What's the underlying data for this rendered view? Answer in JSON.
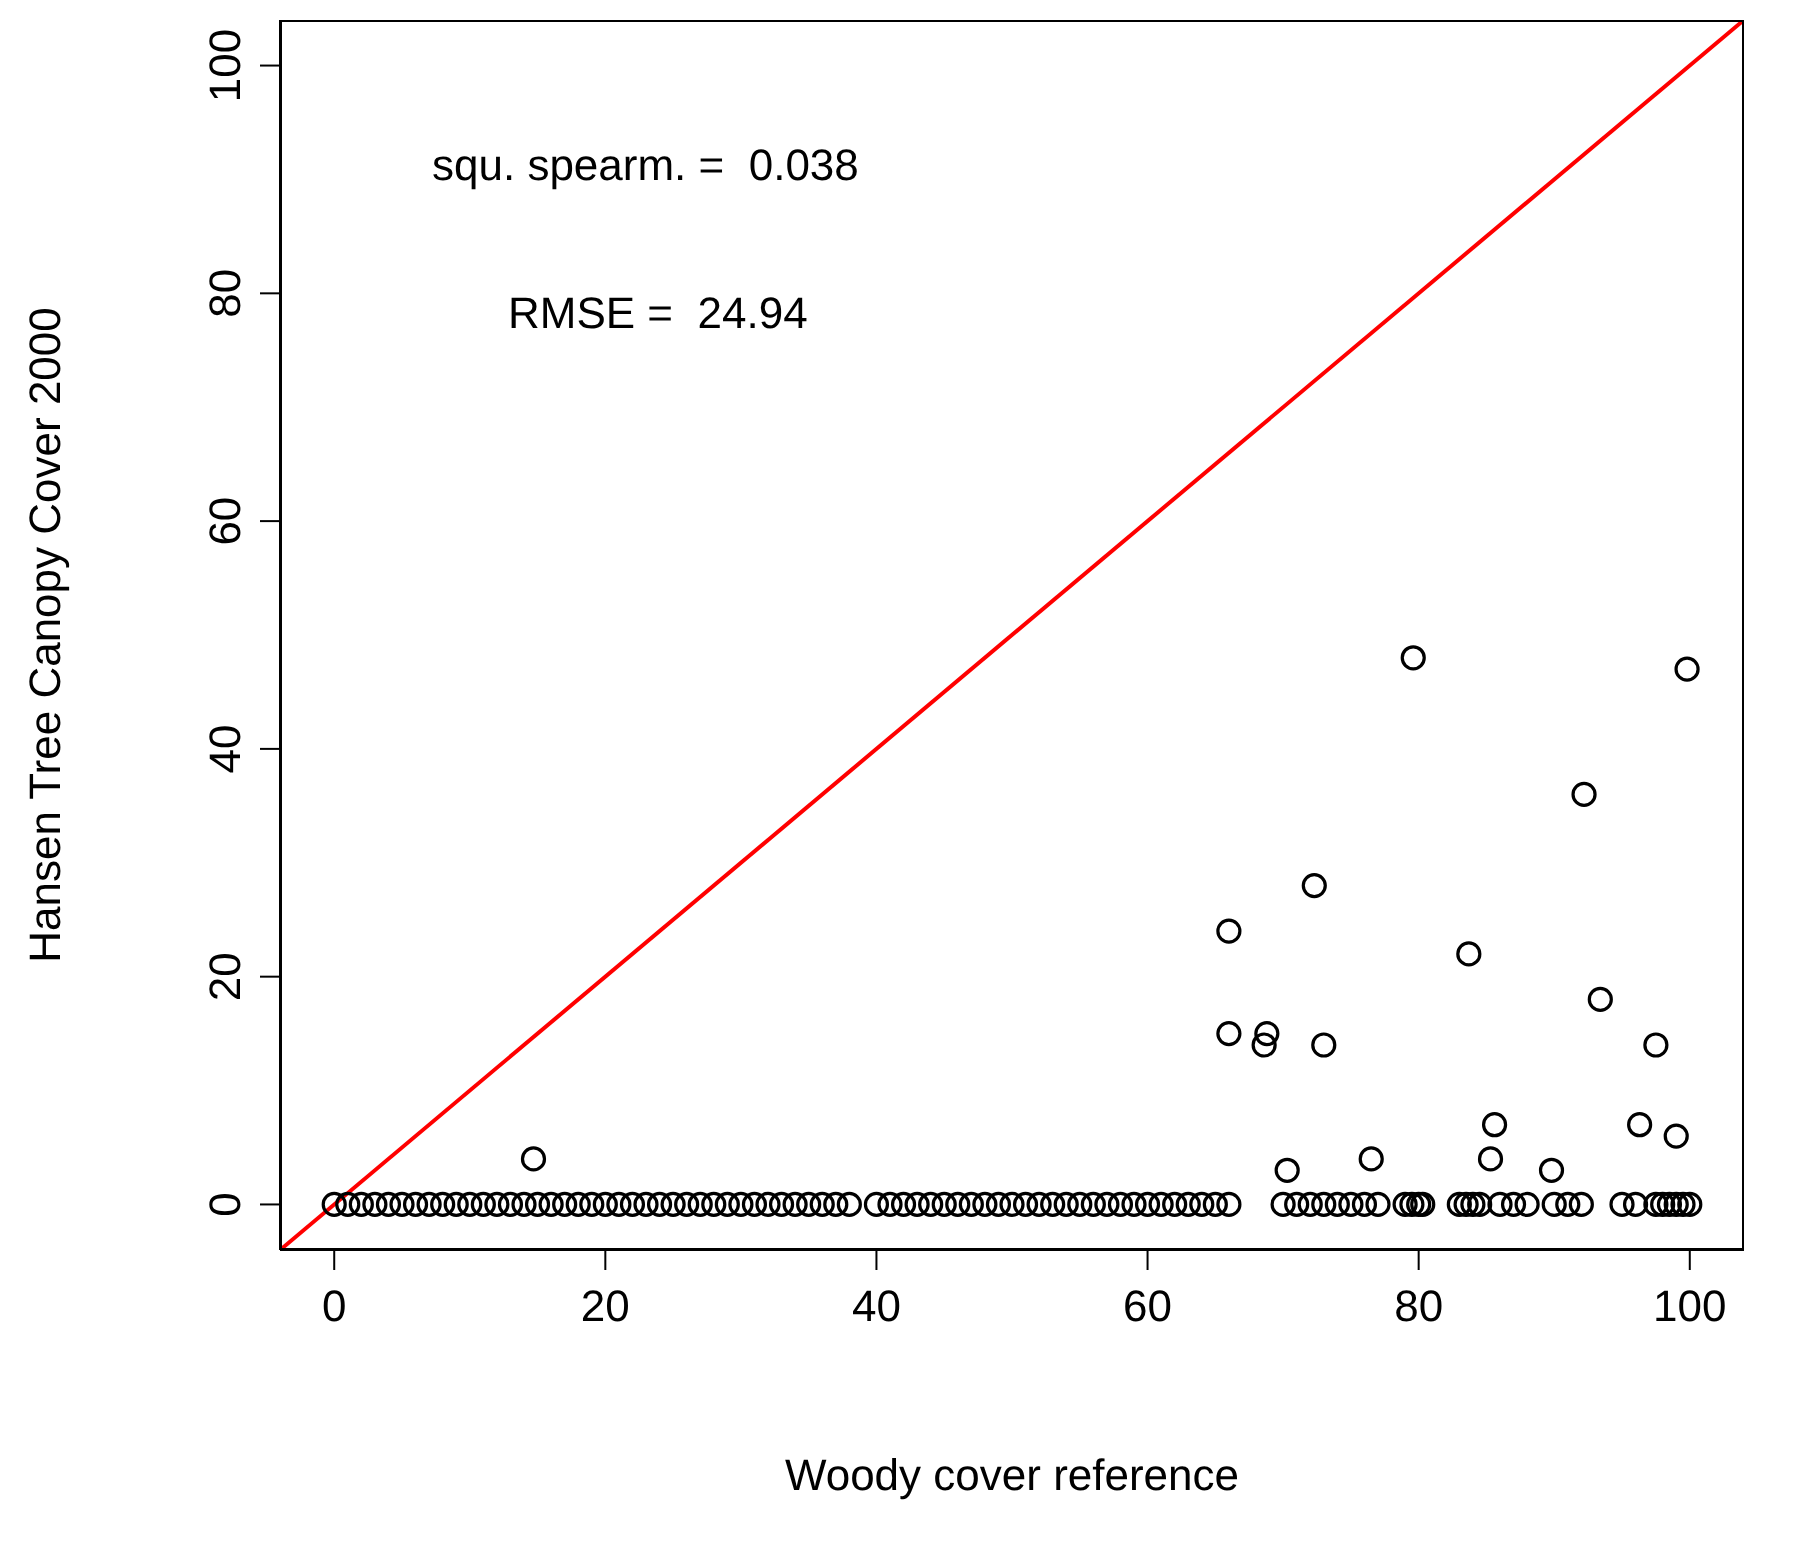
{
  "chart_data": {
    "type": "scatter",
    "xlabel": "Woody cover reference",
    "ylabel": "Hansen Tree Canopy Cover 2000",
    "xlim": [
      -4,
      104
    ],
    "ylim": [
      -4,
      104
    ],
    "xticks": [
      0,
      20,
      40,
      60,
      80,
      100
    ],
    "yticks": [
      0,
      20,
      40,
      60,
      80,
      100
    ],
    "grid": false,
    "annotations": [
      "squ. spearm. =  0.038",
      "RMSE =  24.94"
    ],
    "series": [
      {
        "color": "#000000",
        "marker": "circle",
        "x": [
          14.7,
          66,
          66,
          68.8,
          68.6,
          73,
          72.3,
          70.3,
          76.5,
          79.6,
          83.7,
          85.6,
          85.3,
          89.8,
          92.2,
          93.4,
          96.3,
          97.5,
          99,
          99.8,
          0,
          1,
          2,
          3,
          4,
          5,
          6,
          7,
          8,
          9,
          10,
          11,
          12,
          13,
          14,
          15,
          16,
          17,
          18,
          19,
          20,
          21,
          22,
          23,
          24,
          25,
          26,
          27,
          28,
          29,
          30,
          31,
          32,
          33,
          34,
          35,
          36,
          37,
          38,
          40,
          41,
          42,
          43,
          44,
          45,
          46,
          47,
          48,
          49,
          50,
          51,
          52,
          53,
          54,
          55,
          56,
          57,
          58,
          59,
          60,
          61,
          62,
          63,
          64,
          65,
          66,
          70,
          71,
          72,
          73,
          74,
          75,
          76,
          77,
          79,
          79.5,
          80,
          80.3,
          83,
          83.5,
          84,
          84.5,
          86,
          87,
          88,
          90,
          91,
          92,
          95,
          96,
          97.5,
          98,
          98.5,
          99,
          99.5,
          100
        ],
        "values": [
          4,
          24,
          15,
          15,
          14,
          14,
          28,
          3,
          4,
          48,
          22,
          7,
          4,
          3,
          36,
          18,
          7,
          14,
          6,
          47,
          0,
          0,
          0,
          0,
          0,
          0,
          0,
          0,
          0,
          0,
          0,
          0,
          0,
          0,
          0,
          0,
          0,
          0,
          0,
          0,
          0,
          0,
          0,
          0,
          0,
          0,
          0,
          0,
          0,
          0,
          0,
          0,
          0,
          0,
          0,
          0,
          0,
          0,
          0,
          0,
          0,
          0,
          0,
          0,
          0,
          0,
          0,
          0,
          0,
          0,
          0,
          0,
          0,
          0,
          0,
          0,
          0,
          0,
          0,
          0,
          0,
          0,
          0,
          0,
          0,
          0,
          0,
          0,
          0,
          0,
          0,
          0,
          0,
          0,
          0,
          0,
          0,
          0,
          0,
          0,
          0,
          0,
          0,
          0,
          0,
          0,
          0,
          0,
          0,
          0,
          0,
          0,
          0,
          0,
          0,
          0
        ]
      },
      {
        "type": "line",
        "color": "#ff0000",
        "x": [
          -4,
          104
        ],
        "values": [
          -4,
          104
        ],
        "line_style": "solid",
        "marker": "none"
      }
    ]
  }
}
